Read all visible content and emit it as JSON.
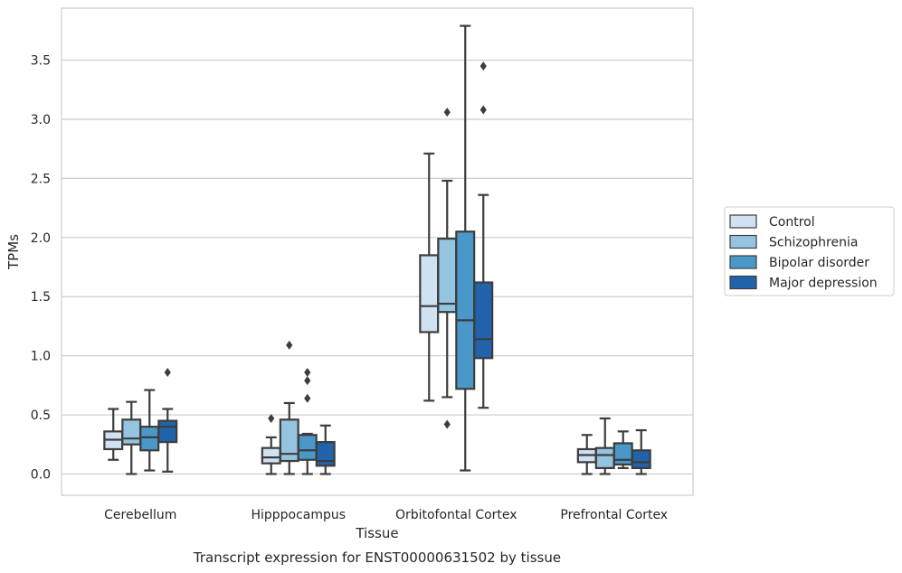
{
  "chart_data": {
    "type": "box",
    "title": "Transcript expression for ENST00000631502 by tissue",
    "xlabel": "Tissue",
    "ylabel": "TPMs",
    "ylim": [
      -0.18,
      3.94
    ],
    "yticks": [
      0.0,
      0.5,
      1.0,
      1.5,
      2.0,
      2.5,
      3.0,
      3.5
    ],
    "ytick_labels": [
      "0.0",
      "0.5",
      "1.0",
      "1.5",
      "2.0",
      "2.5",
      "3.0",
      "3.5"
    ],
    "grid": "horizontal",
    "legend_position": "right",
    "categories": [
      "Cerebellum",
      "Hipppocampus",
      "Orbitofontal Cortex",
      "Prefrontal Cortex"
    ],
    "series": [
      {
        "name": "Control",
        "color": "#d0e1f2",
        "boxes": [
          {
            "whisker_low": 0.12,
            "q1": 0.21,
            "median": 0.29,
            "q3": 0.36,
            "whisker_high": 0.55,
            "outliers": []
          },
          {
            "whisker_low": 0.0,
            "q1": 0.09,
            "median": 0.14,
            "q3": 0.22,
            "whisker_high": 0.31,
            "outliers": [
              0.47
            ]
          },
          {
            "whisker_low": 0.62,
            "q1": 1.2,
            "median": 1.42,
            "q3": 1.85,
            "whisker_high": 2.71,
            "outliers": []
          },
          {
            "whisker_low": 0.0,
            "q1": 0.1,
            "median": 0.16,
            "q3": 0.21,
            "whisker_high": 0.33,
            "outliers": []
          }
        ]
      },
      {
        "name": "Schizophrenia",
        "color": "#94c4df",
        "boxes": [
          {
            "whisker_low": 0.0,
            "q1": 0.25,
            "median": 0.3,
            "q3": 0.46,
            "whisker_high": 0.61,
            "outliers": []
          },
          {
            "whisker_low": 0.0,
            "q1": 0.11,
            "median": 0.17,
            "q3": 0.46,
            "whisker_high": 0.6,
            "outliers": [
              1.09
            ]
          },
          {
            "whisker_low": 0.65,
            "q1": 1.37,
            "median": 1.44,
            "q3": 1.99,
            "whisker_high": 2.48,
            "outliers": [
              0.42,
              3.06
            ]
          },
          {
            "whisker_low": 0.0,
            "q1": 0.05,
            "median": 0.16,
            "q3": 0.22,
            "whisker_high": 0.47,
            "outliers": []
          }
        ]
      },
      {
        "name": "Bipolar disorder",
        "color": "#4a98c9",
        "boxes": [
          {
            "whisker_low": 0.03,
            "q1": 0.2,
            "median": 0.31,
            "q3": 0.4,
            "whisker_high": 0.71,
            "outliers": []
          },
          {
            "whisker_low": 0.0,
            "q1": 0.12,
            "median": 0.2,
            "q3": 0.33,
            "whisker_high": 0.34,
            "outliers": [
              0.64,
              0.79,
              0.86
            ]
          },
          {
            "whisker_low": 0.03,
            "q1": 0.72,
            "median": 1.3,
            "q3": 2.05,
            "whisker_high": 3.79,
            "outliers": []
          },
          {
            "whisker_low": 0.05,
            "q1": 0.08,
            "median": 0.12,
            "q3": 0.26,
            "whisker_high": 0.36,
            "outliers": []
          }
        ]
      },
      {
        "name": "Major depression",
        "color": "#2163aa",
        "boxes": [
          {
            "whisker_low": 0.02,
            "q1": 0.27,
            "median": 0.4,
            "q3": 0.45,
            "whisker_high": 0.55,
            "outliers": [
              0.86
            ]
          },
          {
            "whisker_low": 0.0,
            "q1": 0.07,
            "median": 0.11,
            "q3": 0.27,
            "whisker_high": 0.41,
            "outliers": []
          },
          {
            "whisker_low": 0.56,
            "q1": 0.98,
            "median": 1.14,
            "q3": 1.62,
            "whisker_high": 2.36,
            "outliers": [
              3.08,
              3.45
            ]
          },
          {
            "whisker_low": 0.0,
            "q1": 0.05,
            "median": 0.1,
            "q3": 0.2,
            "whisker_high": 0.37,
            "outliers": []
          }
        ]
      }
    ]
  },
  "colors": {
    "grid": "#cccccc",
    "frame": "#cccccc",
    "ink": "#3d3d3d",
    "text": "#262626"
  }
}
